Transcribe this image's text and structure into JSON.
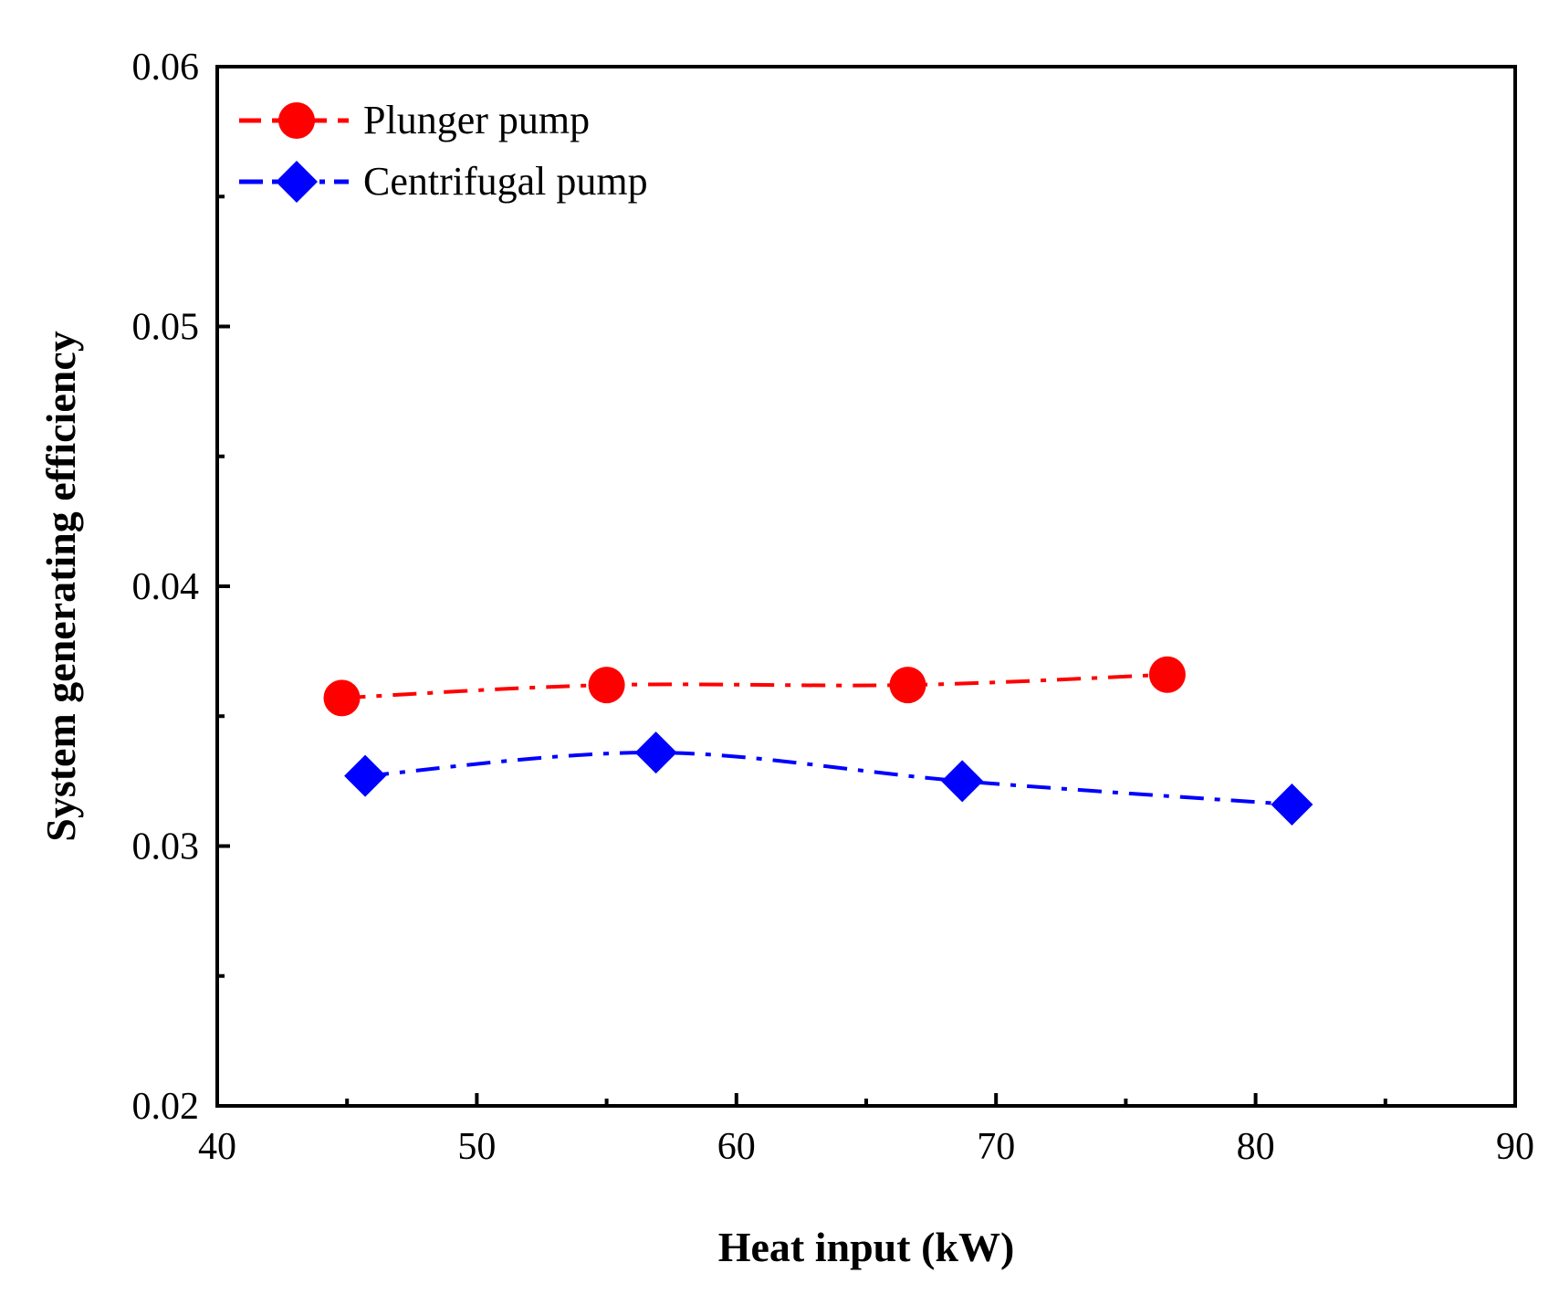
{
  "chart_data": {
    "type": "line",
    "title": "",
    "xlabel": "Heat input (kW)",
    "ylabel": "System generating efficiency",
    "xlim": [
      40,
      90
    ],
    "ylim": [
      0.02,
      0.06
    ],
    "xticks": [
      40,
      50,
      60,
      70,
      80,
      90
    ],
    "xtick_labels": [
      "40",
      "50",
      "60",
      "70",
      "80",
      "90"
    ],
    "yticks": [
      0.02,
      0.03,
      0.04,
      0.05,
      0.06
    ],
    "ytick_labels": [
      "0.02",
      "0.03",
      "0.04",
      "0.05",
      "0.06"
    ],
    "x_minor_step": 5,
    "y_minor_step": 0.005,
    "grid": false,
    "legend_position": "top-left",
    "series": [
      {
        "name": "Plunger pump",
        "color": "#ff0000",
        "marker": "circle",
        "line_style": "dash-dot",
        "x": [
          44.8,
          55.0,
          66.6,
          76.6
        ],
        "y": [
          0.0357,
          0.0362,
          0.0362,
          0.0366
        ]
      },
      {
        "name": "Centrifugal pump",
        "color": "#0000ff",
        "marker": "diamond",
        "line_style": "dash-dot",
        "x": [
          45.7,
          56.9,
          68.7,
          81.4
        ],
        "y": [
          0.0327,
          0.0336,
          0.0325,
          0.0316
        ]
      }
    ]
  }
}
